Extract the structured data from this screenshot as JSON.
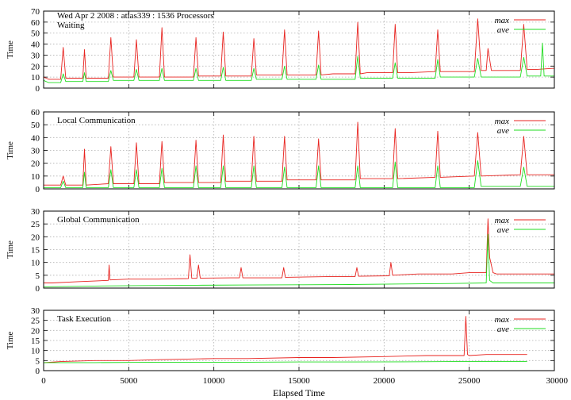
{
  "figure": {
    "header": "Wed Apr 2 2008 : atlas339 : 1536 Processors",
    "xlabel": "Elapsed Time",
    "xticks": [
      "0",
      "5000",
      "10000",
      "15000",
      "20000",
      "25000",
      "30000"
    ]
  },
  "colors": {
    "max": "#e8231f",
    "ave": "#22dd22",
    "grid": "#b0b0b0",
    "axis": "#000000"
  },
  "chart_data": [
    {
      "type": "line",
      "title": "Waiting",
      "ylabel": "Time",
      "xlim": [
        0,
        30000
      ],
      "ylim": [
        0,
        70
      ],
      "yticks": [
        0,
        10,
        20,
        30,
        40,
        50,
        60,
        70
      ],
      "grid": true,
      "legend": "top-right",
      "series": [
        {
          "name": "max",
          "color": "#e8231f",
          "x": [
            0,
            300,
            1000,
            1150,
            1300,
            2300,
            2400,
            2500,
            3000,
            3800,
            3950,
            4100,
            5000,
            5300,
            5450,
            5600,
            6500,
            6800,
            6950,
            7100,
            8000,
            8800,
            8950,
            9100,
            10000,
            10400,
            10550,
            10700,
            11500,
            12200,
            12350,
            12500,
            13000,
            14000,
            14150,
            14300,
            15000,
            16000,
            16150,
            16300,
            17000,
            18300,
            18450,
            18600,
            19000,
            20500,
            20650,
            20800,
            21500,
            23000,
            23150,
            23300,
            24000,
            25300,
            25500,
            25700,
            26000,
            26100,
            26300,
            27000,
            28000,
            28200,
            28400,
            29000,
            30000
          ],
          "y": [
            10,
            8,
            8,
            37,
            9,
            9,
            35,
            9,
            9,
            9,
            46,
            10,
            10,
            10,
            44,
            10,
            10,
            10,
            55,
            10,
            10,
            10,
            46,
            11,
            11,
            11,
            51,
            11,
            11,
            11,
            45,
            12,
            12,
            12,
            53,
            12,
            12,
            12,
            52,
            12,
            13,
            13,
            60,
            13,
            14,
            14,
            58,
            14,
            14,
            15,
            53,
            15,
            15,
            15,
            63,
            16,
            16,
            36,
            16,
            16,
            16,
            58,
            17,
            17,
            18
          ]
        },
        {
          "name": "ave",
          "color": "#22dd22",
          "x": [
            0,
            300,
            1000,
            1150,
            1300,
            2300,
            2400,
            2500,
            3800,
            3950,
            4100,
            5300,
            5450,
            5600,
            6800,
            6950,
            7100,
            8800,
            8950,
            9100,
            10400,
            10550,
            10700,
            12200,
            12350,
            12500,
            14000,
            14150,
            14300,
            16000,
            16150,
            16300,
            18300,
            18450,
            18600,
            20500,
            20650,
            20800,
            23000,
            23150,
            23300,
            25300,
            25500,
            25700,
            28000,
            28200,
            28400,
            29200,
            29300,
            29400,
            30000
          ],
          "y": [
            7,
            5,
            5,
            13,
            6,
            6,
            14,
            6,
            6,
            16,
            7,
            7,
            17,
            7,
            7,
            18,
            7,
            7,
            18,
            7,
            7,
            19,
            7,
            7,
            18,
            8,
            8,
            20,
            8,
            8,
            21,
            8,
            8,
            29,
            9,
            9,
            23,
            9,
            9,
            26,
            10,
            10,
            27,
            10,
            10,
            28,
            11,
            11,
            41,
            11,
            11
          ]
        }
      ]
    },
    {
      "type": "line",
      "title": "Local Communication",
      "ylabel": "Time",
      "xlim": [
        0,
        30000
      ],
      "ylim": [
        0,
        60
      ],
      "yticks": [
        0,
        10,
        20,
        30,
        40,
        50,
        60
      ],
      "grid": true,
      "legend": "top-right",
      "series": [
        {
          "name": "max",
          "color": "#e8231f",
          "x": [
            0,
            500,
            1000,
            1150,
            1300,
            2300,
            2400,
            2500,
            3800,
            3950,
            4100,
            5300,
            5450,
            5600,
            6800,
            6950,
            7100,
            8800,
            8950,
            9100,
            10400,
            10550,
            10700,
            12200,
            12350,
            12500,
            14000,
            14150,
            14300,
            16000,
            16150,
            16300,
            18300,
            18450,
            18600,
            20500,
            20650,
            20800,
            23000,
            23150,
            23300,
            25300,
            25500,
            25700,
            28000,
            28200,
            28400,
            30000
          ],
          "y": [
            3,
            3,
            3,
            10,
            3,
            3,
            31,
            3,
            4,
            33,
            4,
            4,
            36,
            4,
            4,
            37,
            5,
            5,
            38,
            5,
            5,
            42,
            6,
            6,
            41,
            6,
            6,
            41,
            7,
            7,
            39,
            7,
            7,
            52,
            8,
            8,
            47,
            8,
            9,
            45,
            9,
            10,
            44,
            10,
            11,
            41,
            11,
            11
          ]
        },
        {
          "name": "ave",
          "color": "#22dd22",
          "x": [
            0,
            1000,
            1150,
            1300,
            2300,
            2400,
            2500,
            3800,
            3950,
            4100,
            5300,
            5450,
            5600,
            6800,
            6950,
            7100,
            8800,
            8950,
            9100,
            10400,
            10550,
            10700,
            12200,
            12350,
            12500,
            14000,
            14150,
            14300,
            16000,
            16150,
            16300,
            18300,
            18450,
            18600,
            20500,
            20650,
            20800,
            23000,
            23150,
            23300,
            25300,
            25500,
            25700,
            28000,
            28200,
            28400,
            30000
          ],
          "y": [
            1,
            1,
            6,
            1,
            1,
            13,
            1,
            1,
            15,
            1,
            1,
            15,
            1,
            1,
            16,
            1,
            1,
            18,
            1,
            1,
            18,
            1,
            1,
            18,
            1,
            1,
            17,
            1,
            1,
            18,
            1,
            1,
            18,
            1,
            1,
            21,
            1,
            1,
            18,
            1,
            1,
            22,
            2,
            2,
            17,
            2,
            2
          ]
        }
      ]
    },
    {
      "type": "line",
      "title": "Global Communication",
      "ylabel": "Time",
      "xlim": [
        0,
        30000
      ],
      "ylim": [
        0,
        30
      ],
      "yticks": [
        0,
        5,
        10,
        15,
        20,
        25,
        30
      ],
      "grid": true,
      "legend": "top-right",
      "series": [
        {
          "name": "max",
          "color": "#e8231f",
          "x": [
            0,
            500,
            2000,
            3800,
            3850,
            3900,
            5000,
            6800,
            7000,
            8500,
            8600,
            8700,
            9000,
            9100,
            9200,
            11000,
            11500,
            11600,
            11700,
            14000,
            14100,
            14200,
            17000,
            18300,
            18400,
            18500,
            20300,
            20400,
            20500,
            22000,
            24000,
            25000,
            26000,
            26100,
            26200,
            26400,
            26600,
            28000,
            30000
          ],
          "y": [
            2,
            2,
            2.5,
            3,
            9,
            3.2,
            3.5,
            3.5,
            3.6,
            3.7,
            13,
            3.8,
            3.8,
            9,
            3.9,
            4,
            4,
            8,
            4,
            4,
            8,
            4.2,
            4.5,
            4.5,
            8,
            4.6,
            4.8,
            10,
            5,
            5.5,
            5.5,
            6,
            6,
            27,
            12,
            6,
            5.5,
            5.5,
            5.5
          ]
        },
        {
          "name": "ave",
          "color": "#22dd22",
          "x": [
            0,
            3000,
            6000,
            9000,
            12000,
            15000,
            18000,
            21000,
            24000,
            26000,
            26100,
            26200,
            26400,
            28000,
            30000
          ],
          "y": [
            0.5,
            0.8,
            1,
            1.1,
            1.2,
            1.3,
            1.4,
            1.6,
            1.8,
            2,
            21,
            3,
            2,
            2,
            2
          ]
        }
      ]
    },
    {
      "type": "line",
      "title": "Task Execution",
      "ylabel": "Time",
      "xlim": [
        0,
        30000
      ],
      "ylim": [
        0,
        30
      ],
      "yticks": [
        0,
        5,
        10,
        15,
        20,
        25,
        30
      ],
      "grid": true,
      "legend": "top-right",
      "series": [
        {
          "name": "max",
          "color": "#e8231f",
          "x": [
            0,
            1000,
            3000,
            5000,
            6900,
            7000,
            10000,
            12000,
            15000,
            17000,
            20000,
            22500,
            24700,
            24800,
            24900,
            25000,
            26000,
            28400
          ],
          "y": [
            4,
            4.5,
            5,
            5,
            5.5,
            5.5,
            6,
            6,
            6.5,
            6.5,
            7,
            7.5,
            7.5,
            27,
            8,
            7.5,
            8,
            8
          ]
        },
        {
          "name": "ave",
          "color": "#22dd22",
          "x": [
            0,
            3000,
            6000,
            9000,
            12000,
            15000,
            18000,
            21000,
            24000,
            26000,
            28400
          ],
          "y": [
            4,
            4,
            4.1,
            4.2,
            4.2,
            4.3,
            4.3,
            4.4,
            4.5,
            4.5,
            4.5
          ]
        }
      ]
    }
  ]
}
